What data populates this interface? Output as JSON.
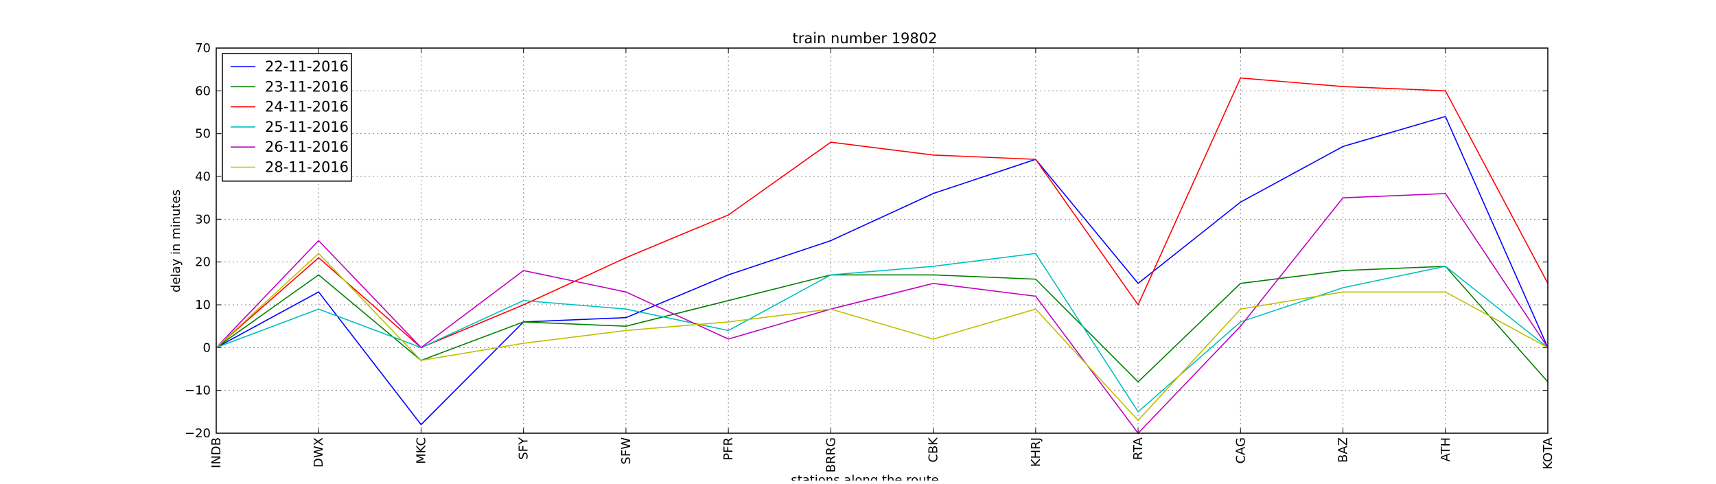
{
  "chart_data": {
    "type": "line",
    "title": "train number 19802",
    "xlabel": "stations along the route",
    "ylabel": "delay in minutes",
    "categories": [
      "INDB",
      "DWX",
      "MKC",
      "SFY",
      "SFW",
      "PFR",
      "BRRG",
      "CBK",
      "KHRJ",
      "RTA",
      "CAG",
      "BAZ",
      "ATH",
      "KOTA"
    ],
    "ylim": [
      -20,
      70
    ],
    "yticks": [
      -20,
      -10,
      0,
      10,
      20,
      30,
      40,
      50,
      60,
      70
    ],
    "grid": true,
    "legend_position": "top-left",
    "series": [
      {
        "name": "22-11-2016",
        "color": "#0000ff",
        "values": [
          0,
          13,
          -18,
          6,
          7,
          17,
          25,
          36,
          44,
          15,
          34,
          47,
          54,
          0
        ]
      },
      {
        "name": "23-11-2016",
        "color": "#008000",
        "values": [
          0,
          17,
          -3,
          6,
          5,
          11,
          17,
          17,
          16,
          -8,
          15,
          18,
          19,
          -8
        ]
      },
      {
        "name": "24-11-2016",
        "color": "#ff0000",
        "values": [
          0,
          21,
          0,
          10,
          21,
          31,
          48,
          45,
          44,
          10,
          63,
          61,
          60,
          15
        ]
      },
      {
        "name": "25-11-2016",
        "color": "#00bfbf",
        "values": [
          0,
          9,
          0,
          11,
          9,
          4,
          17,
          19,
          22,
          -15,
          6,
          14,
          19,
          0
        ]
      },
      {
        "name": "26-11-2016",
        "color": "#bf00bf",
        "values": [
          0,
          25,
          0,
          18,
          13,
          2,
          9,
          15,
          12,
          -20,
          5,
          35,
          36,
          0
        ]
      },
      {
        "name": "28-11-2016",
        "color": "#bfbf00",
        "values": [
          0,
          22,
          -3,
          1,
          4,
          6,
          9,
          2,
          9,
          -17,
          9,
          13,
          13,
          0
        ]
      }
    ]
  }
}
